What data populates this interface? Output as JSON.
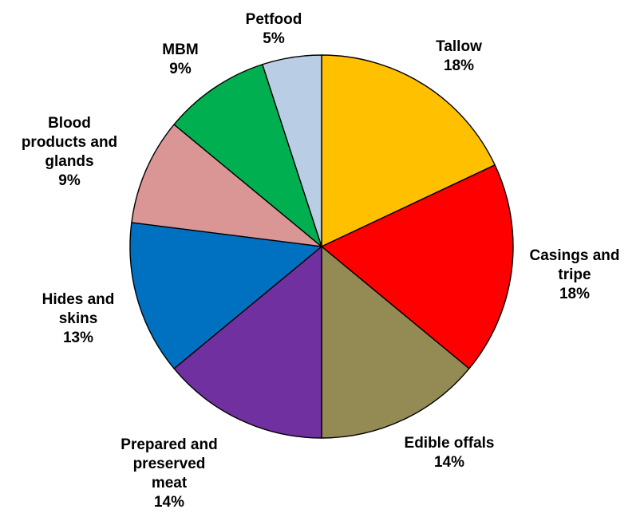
{
  "chart_data": {
    "type": "pie",
    "title": "",
    "start_angle_deg": 0,
    "direction": "clockwise",
    "slices": [
      {
        "name": "Tallow",
        "label_lines": [
          "Tallow",
          "18%"
        ],
        "value": 18,
        "color": "#FFC000"
      },
      {
        "name": "Casings and tripe",
        "label_lines": [
          "Casings and",
          "tripe",
          "18%"
        ],
        "value": 18,
        "color": "#FF0000"
      },
      {
        "name": "Edible offals",
        "label_lines": [
          "Edible offals",
          "14%"
        ],
        "value": 14,
        "color": "#948A54"
      },
      {
        "name": "Prepared and preserved meat",
        "label_lines": [
          "Prepared and",
          "preserved",
          "meat",
          "14%"
        ],
        "value": 14,
        "color": "#7030A0"
      },
      {
        "name": "Hides and skins",
        "label_lines": [
          "Hides and",
          "skins",
          "13%"
        ],
        "value": 13,
        "color": "#0070C0"
      },
      {
        "name": "Blood products and glands",
        "label_lines": [
          "Blood",
          "products and",
          "glands",
          "9%"
        ],
        "value": 9,
        "color": "#D99694"
      },
      {
        "name": "MBM",
        "label_lines": [
          "MBM",
          "9%"
        ],
        "value": 9,
        "color": "#00B050"
      },
      {
        "name": "Petfood",
        "label_lines": [
          "Petfood",
          "5%"
        ],
        "value": 5,
        "color": "#B9CDE5"
      }
    ]
  }
}
